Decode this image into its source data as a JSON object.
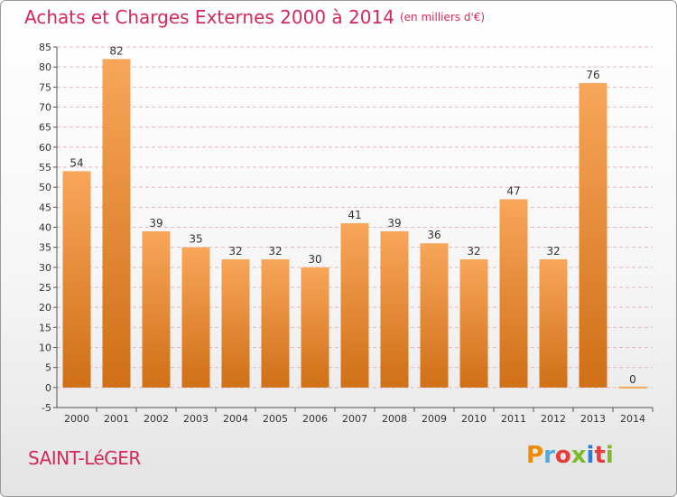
{
  "header": {
    "title": "Achats et Charges Externes 2000 à 2014",
    "unit": "(en milliers d'€)"
  },
  "footer": {
    "commune": "SAINT-LéGER",
    "logo_text": "Proxiti",
    "logo_colors": [
      "#f08a00",
      "#5aa8d8",
      "#e83c3c",
      "#7dbb2a",
      "#2a7fd4",
      "#e83c3c",
      "#7dbb2a"
    ]
  },
  "colors": {
    "title": "#d6285a",
    "bar_top": "#f8a65a",
    "bar_bottom": "#d06f16",
    "grid": "#e6b7c6",
    "axis": "#555555"
  },
  "chart_data": {
    "type": "bar",
    "title": "Achats et Charges Externes 2000 à 2014",
    "subtitle": "(en milliers d'€)",
    "categories": [
      "2000",
      "2001",
      "2002",
      "2003",
      "2004",
      "2005",
      "2006",
      "2007",
      "2008",
      "2009",
      "2010",
      "2011",
      "2012",
      "2013",
      "2014"
    ],
    "values": [
      54,
      82,
      39,
      35,
      32,
      32,
      30,
      41,
      39,
      36,
      32,
      47,
      32,
      76,
      0
    ],
    "ylim": [
      -5,
      85
    ],
    "yticks": [
      -5,
      0,
      5,
      10,
      15,
      20,
      25,
      30,
      35,
      40,
      45,
      50,
      55,
      60,
      65,
      70,
      75,
      80,
      85
    ],
    "grid": true,
    "xlabel": "",
    "ylabel": ""
  }
}
